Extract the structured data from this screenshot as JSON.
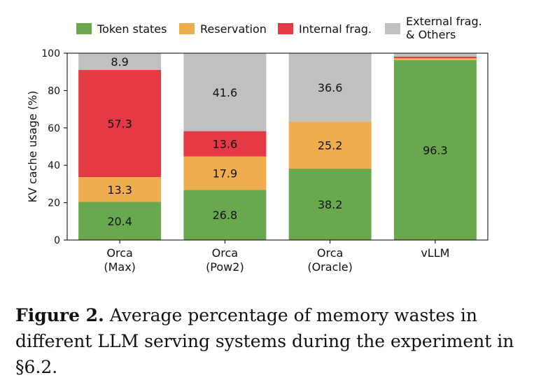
{
  "chart_data": {
    "type": "bar",
    "stacked": true,
    "categories": [
      [
        "Orca",
        "(Max)"
      ],
      [
        "Orca",
        "(Pow2)"
      ],
      [
        "Orca",
        "(Oracle)"
      ],
      [
        "vLLM"
      ]
    ],
    "series": [
      {
        "name": "Token states",
        "color": "#6aa84f",
        "values": [
          20.4,
          26.8,
          38.2,
          96.3
        ],
        "labels": [
          "20.4",
          "26.8",
          "38.2",
          "96.3"
        ]
      },
      {
        "name": "Reservation",
        "color": "#f0ad4e",
        "values": [
          13.3,
          17.9,
          25.2,
          1.0
        ],
        "labels": [
          "13.3",
          "17.9",
          "25.2",
          ""
        ]
      },
      {
        "name": "Internal frag.",
        "color": "#e63946",
        "values": [
          57.3,
          13.6,
          0,
          0.9
        ],
        "labels": [
          "57.3",
          "13.6",
          "",
          ""
        ]
      },
      {
        "name": "External frag.\n& Others",
        "color": "#c0c0c0",
        "values": [
          8.9,
          41.6,
          36.6,
          1.8
        ],
        "labels": [
          "8.9",
          "41.6",
          "36.6",
          ""
        ]
      }
    ],
    "ylabel": "KV cache usage (%)",
    "ylim": [
      0,
      100
    ],
    "yticks": [
      0,
      20,
      40,
      60,
      80,
      100
    ],
    "legend": "top"
  },
  "caption": {
    "label": "Figure 2.",
    "text": " Average percentage of memory wastes in different LLM serving systems during the experiment in §6.2."
  }
}
